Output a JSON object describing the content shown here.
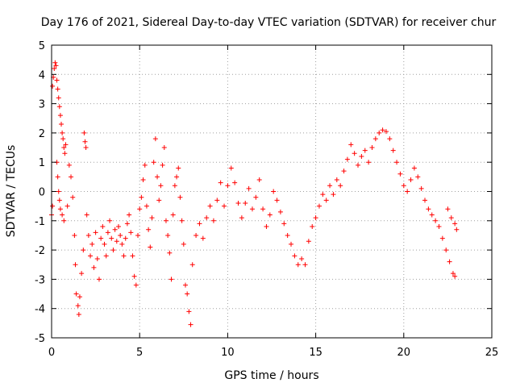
{
  "chart_data": {
    "type": "scatter",
    "title": "Day 176 of 2021, Sidereal Day-to-day VTEC variation (SDTVAR) for receiver chur",
    "xlabel": "GPS time / hours",
    "ylabel": "SDTVAR / TECUs",
    "xlim": [
      0,
      25
    ],
    "ylim": [
      -5,
      5
    ],
    "x_ticks": [
      0,
      5,
      10,
      15,
      20,
      25
    ],
    "y_ticks": [
      -5,
      -4,
      -3,
      -2,
      -1,
      0,
      1,
      2,
      3,
      4,
      5
    ],
    "grid": true,
    "marker": "+",
    "series": [
      {
        "name": "SDTVAR",
        "color": "#ff0000",
        "points": [
          [
            0.0,
            -0.8
          ],
          [
            0.05,
            -0.5
          ],
          [
            0.05,
            3.6
          ],
          [
            0.1,
            3.9
          ],
          [
            0.15,
            4.2
          ],
          [
            0.2,
            4.4
          ],
          [
            0.25,
            4.3
          ],
          [
            0.3,
            3.8
          ],
          [
            0.35,
            3.5
          ],
          [
            0.4,
            3.2
          ],
          [
            0.45,
            2.9
          ],
          [
            0.5,
            2.6
          ],
          [
            0.55,
            2.3
          ],
          [
            0.6,
            2.0
          ],
          [
            0.65,
            1.8
          ],
          [
            0.7,
            1.5
          ],
          [
            0.75,
            1.3
          ],
          [
            0.8,
            1.6
          ],
          [
            0.3,
            1.0
          ],
          [
            0.35,
            0.5
          ],
          [
            0.4,
            0.0
          ],
          [
            0.45,
            -0.3
          ],
          [
            0.5,
            -0.6
          ],
          [
            0.6,
            -0.8
          ],
          [
            0.7,
            -1.0
          ],
          [
            0.9,
            -0.5
          ],
          [
            1.0,
            0.9
          ],
          [
            1.1,
            0.5
          ],
          [
            1.2,
            -0.2
          ],
          [
            1.3,
            -1.5
          ],
          [
            1.35,
            -2.5
          ],
          [
            1.4,
            -3.5
          ],
          [
            1.5,
            -3.9
          ],
          [
            1.55,
            -4.2
          ],
          [
            1.6,
            -3.6
          ],
          [
            1.7,
            -2.8
          ],
          [
            1.8,
            -2.0
          ],
          [
            1.85,
            2.0
          ],
          [
            1.9,
            1.7
          ],
          [
            1.95,
            1.5
          ],
          [
            2.0,
            -0.8
          ],
          [
            2.1,
            -1.5
          ],
          [
            2.2,
            -2.2
          ],
          [
            2.3,
            -1.8
          ],
          [
            2.4,
            -2.6
          ],
          [
            2.5,
            -1.4
          ],
          [
            2.6,
            -2.3
          ],
          [
            2.7,
            -3.0
          ],
          [
            2.8,
            -1.6
          ],
          [
            2.9,
            -1.2
          ],
          [
            3.0,
            -1.8
          ],
          [
            3.1,
            -2.2
          ],
          [
            3.2,
            -1.4
          ],
          [
            3.3,
            -1.0
          ],
          [
            3.4,
            -1.6
          ],
          [
            3.5,
            -2.0
          ],
          [
            3.6,
            -1.3
          ],
          [
            3.7,
            -1.7
          ],
          [
            3.8,
            -1.2
          ],
          [
            3.9,
            -1.5
          ],
          [
            4.0,
            -1.8
          ],
          [
            4.1,
            -2.2
          ],
          [
            4.2,
            -1.6
          ],
          [
            4.3,
            -1.1
          ],
          [
            4.4,
            -0.8
          ],
          [
            4.5,
            -1.4
          ],
          [
            4.6,
            -2.2
          ],
          [
            4.7,
            -2.9
          ],
          [
            4.8,
            -3.2
          ],
          [
            4.9,
            -1.5
          ],
          [
            5.0,
            -0.6
          ],
          [
            5.1,
            -0.2
          ],
          [
            5.2,
            0.4
          ],
          [
            5.3,
            0.9
          ],
          [
            5.4,
            -0.5
          ],
          [
            5.5,
            -1.3
          ],
          [
            5.6,
            -1.9
          ],
          [
            5.7,
            -0.9
          ],
          [
            5.8,
            1.0
          ],
          [
            5.9,
            1.8
          ],
          [
            6.0,
            0.5
          ],
          [
            6.1,
            -0.3
          ],
          [
            6.2,
            0.2
          ],
          [
            6.3,
            0.9
          ],
          [
            6.4,
            1.5
          ],
          [
            6.5,
            -1.0
          ],
          [
            6.6,
            -1.5
          ],
          [
            6.7,
            -2.1
          ],
          [
            6.8,
            -3.0
          ],
          [
            6.9,
            -0.8
          ],
          [
            7.0,
            0.2
          ],
          [
            7.1,
            0.5
          ],
          [
            7.2,
            0.8
          ],
          [
            7.3,
            -0.2
          ],
          [
            7.4,
            -1.0
          ],
          [
            7.5,
            -1.8
          ],
          [
            7.6,
            -3.2
          ],
          [
            7.7,
            -3.5
          ],
          [
            7.8,
            -4.1
          ],
          [
            7.9,
            -4.55
          ],
          [
            8.0,
            -2.5
          ],
          [
            8.2,
            -1.5
          ],
          [
            8.4,
            -1.1
          ],
          [
            8.6,
            -1.6
          ],
          [
            8.8,
            -0.9
          ],
          [
            9.0,
            -0.5
          ],
          [
            9.2,
            -1.0
          ],
          [
            9.4,
            -0.3
          ],
          [
            9.6,
            0.3
          ],
          [
            9.8,
            -0.5
          ],
          [
            10.0,
            0.2
          ],
          [
            10.2,
            0.8
          ],
          [
            10.4,
            0.3
          ],
          [
            10.6,
            -0.4
          ],
          [
            10.8,
            -0.9
          ],
          [
            11.0,
            -0.4
          ],
          [
            11.2,
            0.1
          ],
          [
            11.4,
            -0.6
          ],
          [
            11.6,
            -0.2
          ],
          [
            11.8,
            0.4
          ],
          [
            12.0,
            -0.6
          ],
          [
            12.2,
            -1.2
          ],
          [
            12.4,
            -0.8
          ],
          [
            12.6,
            0.0
          ],
          [
            12.8,
            -0.3
          ],
          [
            13.0,
            -0.7
          ],
          [
            13.2,
            -1.1
          ],
          [
            13.4,
            -1.5
          ],
          [
            13.6,
            -1.8
          ],
          [
            13.8,
            -2.2
          ],
          [
            14.0,
            -2.5
          ],
          [
            14.2,
            -2.3
          ],
          [
            14.4,
            -2.5
          ],
          [
            14.6,
            -1.7
          ],
          [
            14.8,
            -1.2
          ],
          [
            15.0,
            -0.9
          ],
          [
            15.2,
            -0.5
          ],
          [
            15.4,
            -0.1
          ],
          [
            15.6,
            -0.3
          ],
          [
            15.8,
            0.2
          ],
          [
            16.0,
            -0.1
          ],
          [
            16.2,
            0.4
          ],
          [
            16.4,
            0.2
          ],
          [
            16.6,
            0.7
          ],
          [
            16.8,
            1.1
          ],
          [
            17.0,
            1.6
          ],
          [
            17.2,
            1.3
          ],
          [
            17.4,
            0.9
          ],
          [
            17.6,
            1.2
          ],
          [
            17.8,
            1.4
          ],
          [
            18.0,
            1.0
          ],
          [
            18.2,
            1.5
          ],
          [
            18.4,
            1.8
          ],
          [
            18.6,
            2.0
          ],
          [
            18.8,
            2.1
          ],
          [
            19.0,
            2.05
          ],
          [
            19.2,
            1.8
          ],
          [
            19.4,
            1.4
          ],
          [
            19.6,
            1.0
          ],
          [
            19.8,
            0.6
          ],
          [
            20.0,
            0.2
          ],
          [
            20.2,
            0.0
          ],
          [
            20.4,
            0.4
          ],
          [
            20.6,
            0.8
          ],
          [
            20.8,
            0.5
          ],
          [
            21.0,
            0.1
          ],
          [
            21.2,
            -0.3
          ],
          [
            21.4,
            -0.6
          ],
          [
            21.6,
            -0.8
          ],
          [
            21.8,
            -1.0
          ],
          [
            22.0,
            -1.2
          ],
          [
            22.2,
            -1.6
          ],
          [
            22.4,
            -2.0
          ],
          [
            22.6,
            -2.4
          ],
          [
            22.8,
            -2.8
          ],
          [
            22.9,
            -2.9
          ],
          [
            22.5,
            -0.6
          ],
          [
            22.7,
            -0.9
          ],
          [
            22.9,
            -1.1
          ],
          [
            23.0,
            -1.3
          ]
        ]
      }
    ]
  }
}
